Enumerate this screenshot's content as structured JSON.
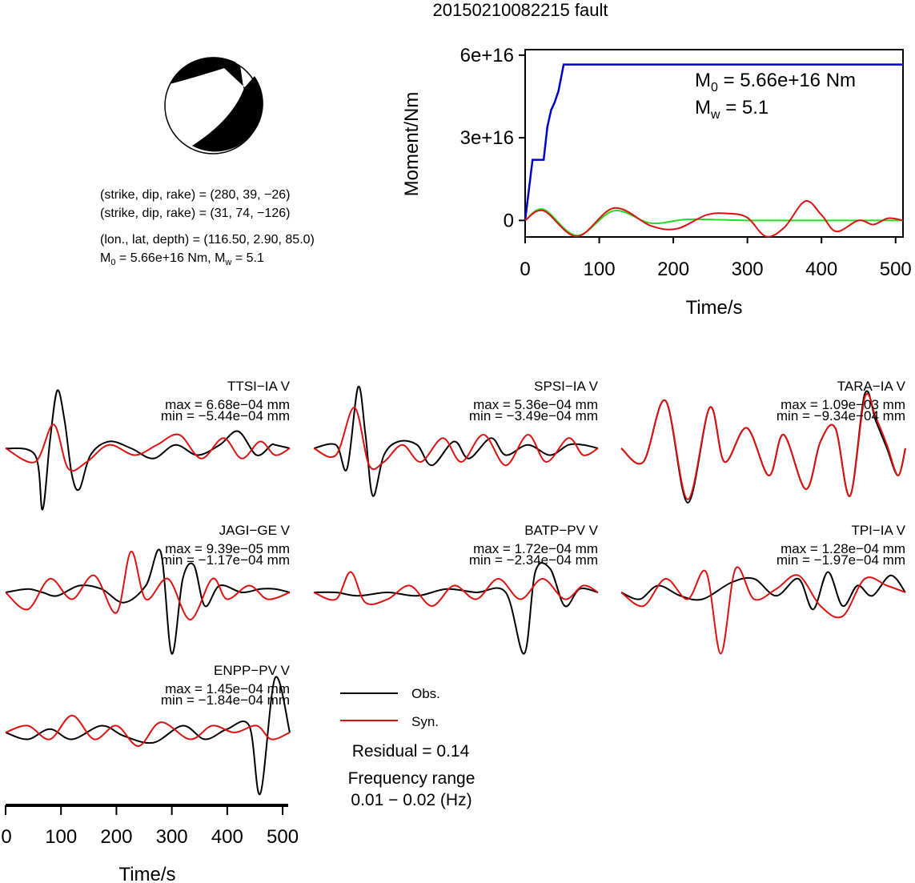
{
  "title": "20150210082215 fault",
  "mechanism": {
    "plane1": "(strike, dip, rake) = (280, 39, −26)",
    "plane2": "(strike, dip, rake) = (31, 74, −126)",
    "location": "(lon., lat, depth) = (116.50, 2.90, 85.0)",
    "m0_main": "M",
    "m0_sub": "0",
    "m0_rest": " = 5.66e+16 Nm, M",
    "mw_sub": "w",
    "mw_rest": " = 5.1"
  },
  "chart_data": [
    {
      "type": "line",
      "title": "",
      "xlabel": "Time/s",
      "ylabel": "Moment/Nm",
      "xlim": [
        0,
        510
      ],
      "ylim": [
        -6000000000000000,
        62000000000000000
      ],
      "xticks": [
        "0",
        "100",
        "200",
        "300",
        "400",
        "500"
      ],
      "yticks": [
        "0",
        "3e+16",
        "6e+16"
      ],
      "annotation": {
        "m0_main": "M",
        "m0_sub": "0",
        "m0_rest": " = 5.66e+16 Nm",
        "mw_main": "M",
        "mw_sub": "w",
        "mw_rest": " = 5.1"
      },
      "colors": {
        "moment": "#0000cc",
        "green": "#22dd22",
        "red": "#dd1111"
      },
      "series": [
        {
          "key": "moment",
          "x": [
            0,
            10,
            25,
            30,
            35,
            40,
            45,
            52,
            510
          ],
          "y": [
            0,
            22000000000000000,
            22000000000000000,
            34000000000000000,
            40000000000000000,
            43000000000000000,
            47000000000000000,
            56600000000000000,
            56600000000000000
          ]
        },
        {
          "key": "green",
          "x": [
            0,
            25,
            70,
            120,
            170,
            220,
            300,
            400,
            510
          ],
          "y": [
            0,
            4000000000000000,
            -5500000000000000,
            3500000000000000,
            -1000000000000000,
            400000000000000,
            0,
            0,
            0
          ]
        },
        {
          "key": "red",
          "x": [
            0,
            25,
            70,
            120,
            170,
            205,
            245,
            275,
            300,
            325,
            350,
            378,
            400,
            420,
            450,
            470,
            490,
            510
          ],
          "y": [
            0,
            3500000000000000,
            -5800000000000000,
            4500000000000000,
            -2000000000000000,
            -3000000000000000,
            2000000000000000,
            2500000000000000,
            1000000000000000,
            -5800000000000000,
            -2500000000000000,
            7000000000000000,
            2000000000000000,
            -4000000000000000,
            0,
            -1500000000000000,
            800000000000000,
            0
          ]
        }
      ]
    },
    {
      "type": "line",
      "title": "",
      "xlabel": "Time/s",
      "xlim": [
        0,
        510
      ],
      "xticks": [
        "0",
        "100",
        "200",
        "300",
        "400",
        "500"
      ],
      "legend": {
        "obs": "Obs.",
        "syn": "Syn.",
        "obs_color": "#000000",
        "syn_color": "#dd1111"
      },
      "residual": "Residual = 0.14",
      "freq_label": "Frequency range",
      "freq_value": "0.01 − 0.02 (Hz)",
      "traces": [
        {
          "name": "TTSI−IA V",
          "max": "max = 6.68e−04 mm",
          "min": "min = −5.44e−04 mm",
          "obs": [
            [
              0,
              0
            ],
            [
              40,
              -0.1
            ],
            [
              50,
              -0.9
            ],
            [
              60,
              0.1
            ],
            [
              70,
              0.85
            ],
            [
              80,
              0.4
            ],
            [
              90,
              -0.4
            ],
            [
              100,
              -0.6
            ],
            [
              115,
              -0.1
            ],
            [
              140,
              0.1
            ],
            [
              170,
              0
            ],
            [
              200,
              -0.15
            ],
            [
              230,
              0.05
            ],
            [
              260,
              -0.1
            ],
            [
              290,
              0.05
            ],
            [
              315,
              0.25
            ],
            [
              340,
              -0.1
            ],
            [
              360,
              0.05
            ],
            [
              365,
              0.05
            ],
            [
              385,
              0
            ]
          ],
          "syn": [
            [
              0,
              0
            ],
            [
              40,
              -0.2
            ],
            [
              65,
              0.35
            ],
            [
              85,
              -0.3
            ],
            [
              110,
              -0.2
            ],
            [
              140,
              0.05
            ],
            [
              175,
              -0.1
            ],
            [
              205,
              0.05
            ],
            [
              235,
              0.2
            ],
            [
              265,
              -0.15
            ],
            [
              295,
              0.15
            ],
            [
              320,
              -0.15
            ],
            [
              345,
              0.1
            ],
            [
              365,
              -0.1
            ],
            [
              385,
              0
            ]
          ]
        },
        {
          "name": "SPSI−IA V",
          "max": "max = 5.36e−04 mm",
          "min": "min = −3.49e−04 mm",
          "obs": [
            [
              0,
              0
            ],
            [
              30,
              0.05
            ],
            [
              45,
              -0.3
            ],
            [
              60,
              0.9
            ],
            [
              70,
              0.2
            ],
            [
              80,
              -0.7
            ],
            [
              95,
              -0.1
            ],
            [
              115,
              0.1
            ],
            [
              140,
              0.05
            ],
            [
              160,
              -0.25
            ],
            [
              190,
              0.1
            ],
            [
              210,
              -0.15
            ],
            [
              240,
              0.15
            ],
            [
              260,
              -0.1
            ],
            [
              290,
              0.05
            ],
            [
              320,
              -0.1
            ],
            [
              345,
              0.05
            ],
            [
              365,
              0.05
            ],
            [
              385,
              0
            ]
          ],
          "syn": [
            [
              0,
              0
            ],
            [
              30,
              -0.1
            ],
            [
              55,
              0.6
            ],
            [
              75,
              -0.25
            ],
            [
              95,
              -0.2
            ],
            [
              120,
              0.05
            ],
            [
              145,
              -0.2
            ],
            [
              175,
              0.15
            ],
            [
              200,
              -0.2
            ],
            [
              230,
              0.2
            ],
            [
              260,
              -0.25
            ],
            [
              290,
              0.2
            ],
            [
              315,
              -0.2
            ],
            [
              345,
              0.15
            ],
            [
              365,
              -0.1
            ],
            [
              385,
              0
            ]
          ]
        },
        {
          "name": "TARA−IA V",
          "max": "max = 1.09e−03 mm",
          "min": "min = −9.34e−04 mm",
          "obs": [
            [
              0,
              0
            ],
            [
              30,
              -0.2
            ],
            [
              60,
              0.7
            ],
            [
              90,
              -0.8
            ],
            [
              120,
              0.6
            ],
            [
              140,
              -0.2
            ],
            [
              170,
              0.3
            ],
            [
              200,
              -0.4
            ],
            [
              220,
              0.2
            ],
            [
              250,
              -0.6
            ],
            [
              270,
              0.1
            ],
            [
              290,
              0.3
            ],
            [
              310,
              -0.7
            ],
            [
              330,
              0.8
            ],
            [
              345,
              0.4
            ],
            [
              360,
              0
            ],
            [
              375,
              -0.4
            ],
            [
              385,
              0
            ]
          ],
          "syn": [
            [
              0,
              0
            ],
            [
              30,
              -0.2
            ],
            [
              60,
              0.7
            ],
            [
              90,
              -0.75
            ],
            [
              120,
              0.6
            ],
            [
              140,
              -0.2
            ],
            [
              170,
              0.3
            ],
            [
              200,
              -0.4
            ],
            [
              220,
              0.2
            ],
            [
              250,
              -0.6
            ],
            [
              270,
              0.1
            ],
            [
              290,
              0.3
            ],
            [
              310,
              -0.7
            ],
            [
              330,
              0.75
            ],
            [
              345,
              0.45
            ],
            [
              360,
              0.05
            ],
            [
              375,
              -0.4
            ],
            [
              385,
              0
            ]
          ]
        },
        {
          "name": "JAGI−GE V",
          "max": "max = 9.39e−05 mm",
          "min": "min = −1.17e−04 mm",
          "obs": [
            [
              0,
              0
            ],
            [
              30,
              0.05
            ],
            [
              50,
              0
            ],
            [
              70,
              -0.05
            ],
            [
              100,
              0.1
            ],
            [
              130,
              0.05
            ],
            [
              160,
              -0.15
            ],
            [
              190,
              0.1
            ],
            [
              210,
              0.6
            ],
            [
              225,
              -0.9
            ],
            [
              240,
              0.2
            ],
            [
              255,
              0.4
            ],
            [
              270,
              -0.2
            ],
            [
              290,
              0.1
            ],
            [
              320,
              0
            ],
            [
              345,
              0.05
            ],
            [
              365,
              0.05
            ],
            [
              385,
              0
            ]
          ],
          "syn": [
            [
              0,
              0
            ],
            [
              30,
              -0.25
            ],
            [
              60,
              0.2
            ],
            [
              90,
              -0.1
            ],
            [
              120,
              0.25
            ],
            [
              150,
              -0.3
            ],
            [
              170,
              0.6
            ],
            [
              190,
              -0.1
            ],
            [
              220,
              0.2
            ],
            [
              250,
              -0.4
            ],
            [
              280,
              0.2
            ],
            [
              300,
              -0.1
            ],
            [
              330,
              0.1
            ],
            [
              355,
              -0.1
            ],
            [
              385,
              0
            ]
          ]
        },
        {
          "name": "BATP−PV V",
          "max": "max = 1.72e−04 mm",
          "min": "min = −2.34e−04 mm",
          "obs": [
            [
              0,
              0
            ],
            [
              30,
              0
            ],
            [
              60,
              -0.05
            ],
            [
              100,
              0
            ],
            [
              140,
              -0.05
            ],
            [
              180,
              0.05
            ],
            [
              220,
              0
            ],
            [
              260,
              0
            ],
            [
              285,
              -0.9
            ],
            [
              300,
              0.3
            ],
            [
              320,
              0.35
            ],
            [
              340,
              -0.2
            ],
            [
              360,
              0.05
            ],
            [
              385,
              0
            ]
          ],
          "syn": [
            [
              0,
              0
            ],
            [
              30,
              -0.1
            ],
            [
              50,
              0.3
            ],
            [
              70,
              -0.15
            ],
            [
              100,
              -0.1
            ],
            [
              130,
              0.1
            ],
            [
              160,
              -0.2
            ],
            [
              190,
              0.1
            ],
            [
              220,
              -0.1
            ],
            [
              250,
              0.2
            ],
            [
              280,
              -0.1
            ],
            [
              310,
              0.2
            ],
            [
              340,
              -0.1
            ],
            [
              365,
              0.1
            ],
            [
              385,
              0
            ]
          ]
        },
        {
          "name": "TPI−IA V",
          "max": "max = 1.28e−04 mm",
          "min": "min = −1.97e−04 mm",
          "obs": [
            [
              0,
              0
            ],
            [
              25,
              -0.1
            ],
            [
              50,
              0.1
            ],
            [
              80,
              -0.05
            ],
            [
              110,
              -0.1
            ],
            [
              150,
              0.15
            ],
            [
              180,
              0.2
            ],
            [
              210,
              -0.05
            ],
            [
              240,
              0.2
            ],
            [
              260,
              -0.25
            ],
            [
              280,
              0.3
            ],
            [
              300,
              -0.2
            ],
            [
              320,
              0.1
            ],
            [
              340,
              -0.05
            ],
            [
              365,
              0.25
            ],
            [
              385,
              0
            ]
          ],
          "syn": [
            [
              0,
              0
            ],
            [
              30,
              -0.2
            ],
            [
              60,
              0.2
            ],
            [
              90,
              -0.1
            ],
            [
              115,
              0.3
            ],
            [
              135,
              -0.9
            ],
            [
              155,
              0.35
            ],
            [
              180,
              -0.1
            ],
            [
              210,
              0.05
            ],
            [
              240,
              0.25
            ],
            [
              270,
              -0.2
            ],
            [
              300,
              -0.35
            ],
            [
              330,
              0.2
            ],
            [
              360,
              0.1
            ],
            [
              385,
              0
            ]
          ]
        },
        {
          "name": "ENPP−PV V",
          "max": "max = 1.45e−04 mm",
          "min": "min = −1.84e−04 mm",
          "obs": [
            [
              0,
              0
            ],
            [
              30,
              -0.1
            ],
            [
              60,
              0.05
            ],
            [
              90,
              -0.1
            ],
            [
              130,
              0.1
            ],
            [
              160,
              -0.05
            ],
            [
              200,
              -0.15
            ],
            [
              240,
              0.1
            ],
            [
              270,
              -0.1
            ],
            [
              300,
              0.05
            ],
            [
              330,
              0.1
            ],
            [
              345,
              -0.9
            ],
            [
              365,
              0.8
            ],
            [
              385,
              0
            ]
          ],
          "syn": [
            [
              0,
              0
            ],
            [
              30,
              0.1
            ],
            [
              60,
              -0.1
            ],
            [
              90,
              0.25
            ],
            [
              120,
              -0.1
            ],
            [
              150,
              0.1
            ],
            [
              180,
              -0.2
            ],
            [
              210,
              0.15
            ],
            [
              250,
              -0.1
            ],
            [
              280,
              0.1
            ],
            [
              310,
              0
            ],
            [
              340,
              0.1
            ],
            [
              360,
              -0.1
            ],
            [
              385,
              0
            ]
          ]
        }
      ]
    }
  ]
}
